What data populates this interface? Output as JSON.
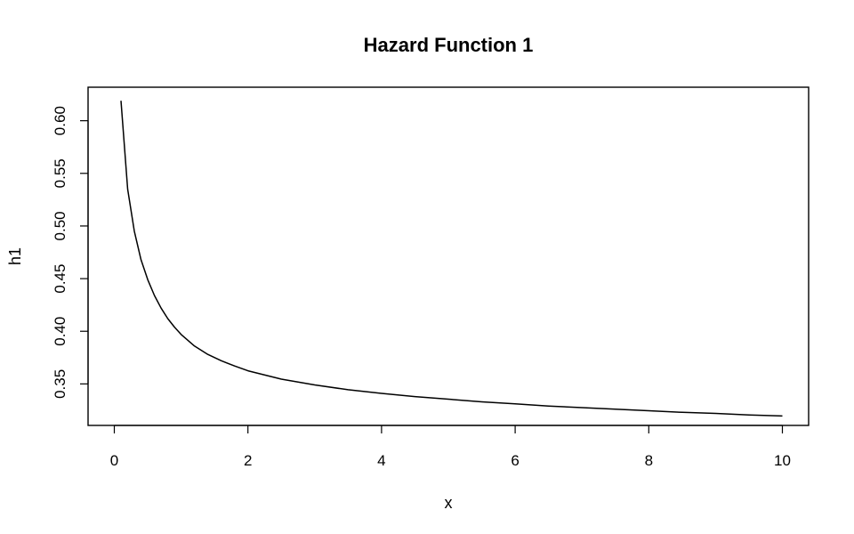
{
  "chart_data": {
    "type": "line",
    "title": "Hazard Function 1",
    "xlabel": "x",
    "ylabel": "h1",
    "xlim": [
      0,
      10
    ],
    "ylim": [
      0.3,
      0.65
    ],
    "x_ticks": [
      0,
      2,
      4,
      6,
      8,
      10
    ],
    "x_tick_labels": [
      "0",
      "2",
      "4",
      "6",
      "8",
      "10"
    ],
    "y_ticks": [
      0.35,
      0.4,
      0.45,
      0.5,
      0.55,
      0.6
    ],
    "y_tick_labels": [
      "0.35",
      "0.40",
      "0.45",
      "0.50",
      "0.55",
      "0.60"
    ],
    "grid": false,
    "series": [
      {
        "color": "#000000",
        "x": [
          0.1,
          0.2,
          0.3,
          0.4,
          0.5,
          0.6,
          0.7,
          0.8,
          0.9,
          1.0,
          1.2,
          1.4,
          1.6,
          1.8,
          2.0,
          2.5,
          3.0,
          3.5,
          4.0,
          4.5,
          5.0,
          5.5,
          6.0,
          6.5,
          7.0,
          7.5,
          8.0,
          8.5,
          9.0,
          9.5,
          10.0
        ],
        "y": [
          0.619,
          0.535,
          0.495,
          0.468,
          0.449,
          0.434,
          0.422,
          0.412,
          0.404,
          0.397,
          0.386,
          0.378,
          0.372,
          0.367,
          0.3625,
          0.3545,
          0.349,
          0.3445,
          0.341,
          0.338,
          0.3355,
          0.333,
          0.331,
          0.329,
          0.3275,
          0.326,
          0.3245,
          0.323,
          0.322,
          0.3205,
          0.3195
        ]
      }
    ]
  }
}
